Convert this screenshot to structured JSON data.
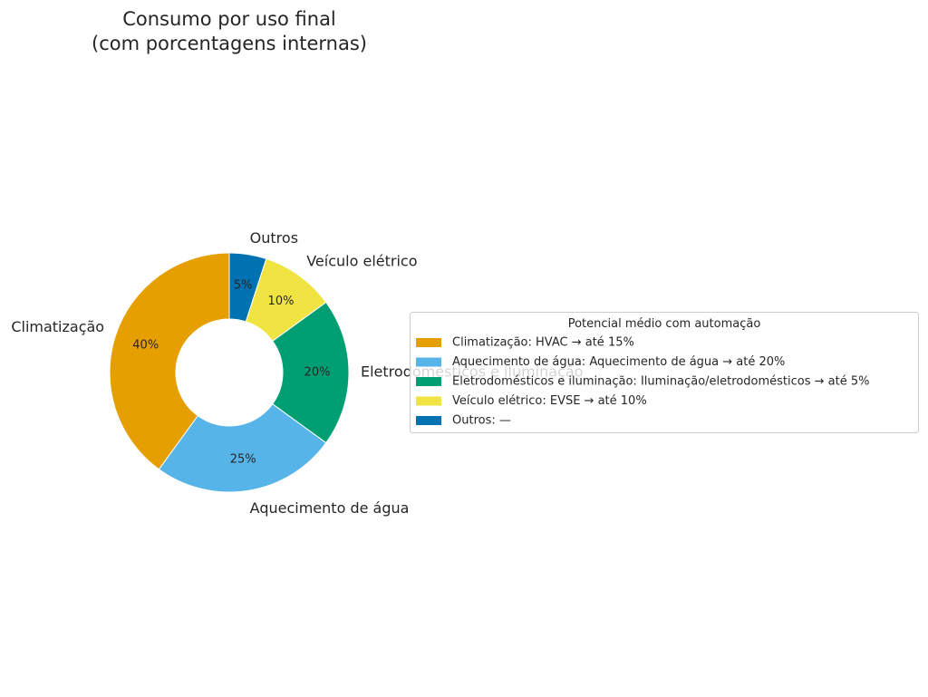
{
  "chart_data": {
    "type": "pie",
    "donut": true,
    "title": "Consumo por uso final\n(com porcentagens internas)",
    "categories": [
      "Climatização",
      "Aquecimento de água",
      "Eletrodomésticos e iluminação",
      "Veículo elétrico",
      "Outros"
    ],
    "values": [
      40,
      25,
      20,
      10,
      5
    ],
    "value_labels": [
      "40%",
      "25%",
      "20%",
      "10%",
      "5%"
    ],
    "colors": [
      "#E69F00",
      "#56B4E9",
      "#009E73",
      "#F0E442",
      "#0072B2"
    ],
    "legend": {
      "title": "Potencial médio com automação",
      "placement": "right",
      "entries": [
        "Climatização: HVAC → até 15%",
        "Aquecimento de água: Aquecimento de água → até 20%",
        "Eletrodomésticos e iluminação: Iluminação/eletrodomésticos → até 5%",
        "Veículo elétrico: EVSE → até 10%",
        "Outros: —"
      ]
    }
  }
}
